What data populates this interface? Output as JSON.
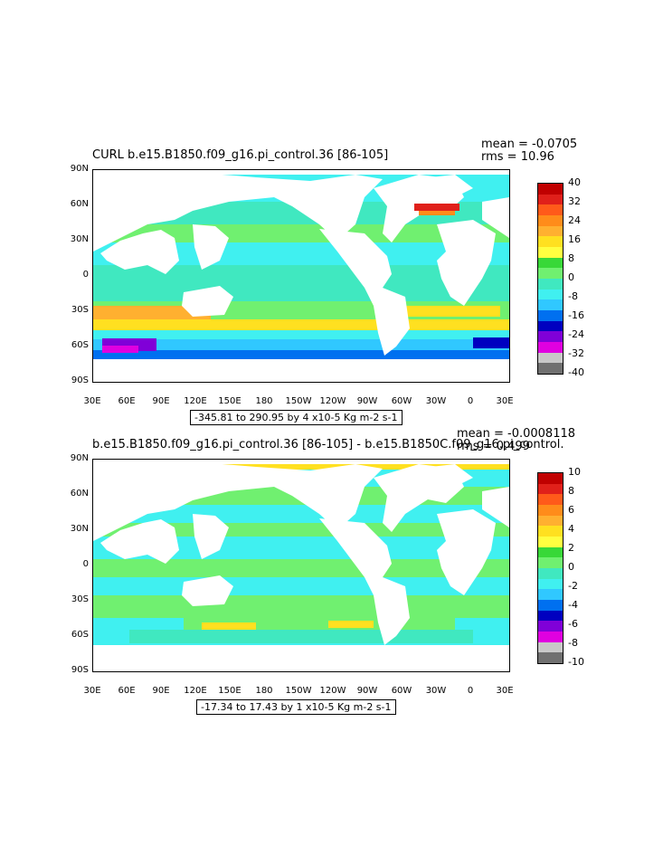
{
  "panel1": {
    "title": "CURL b.e15.B1850.f09_g16.pi_control.36 [86-105]",
    "mean": "mean = -0.0705",
    "rms": "rms = 10.96",
    "range_text": "-345.81 to 290.95 by 4 x10-5 Kg m-2 s-1",
    "legend_labels": [
      "40",
      "32",
      "24",
      "16",
      "8",
      "0",
      "-8",
      "-16",
      "-24",
      "-32",
      "-40"
    ],
    "legend_colors": [
      "#c00000",
      "#e0201a",
      "#ff5a1a",
      "#ff8c1a",
      "#ffb030",
      "#ffe020",
      "#ffff40",
      "#38d838",
      "#70f070",
      "#40e8c0",
      "#40f0f0",
      "#30c8ff",
      "#0070f0",
      "#0000c0",
      "#8000d8",
      "#e000e0",
      "#c8c8c8",
      "#707070"
    ]
  },
  "panel2": {
    "title": "b.e15.B1850.f09_g16.pi_control.36 [86-105] - b.e15.B1850C.f09_g16.pi_control.",
    "mean": "mean = -0.0008118",
    "rms": "rms = 0.499",
    "range_text": "-17.34 to 17.43 by 1 x10-5 Kg m-2 s-1",
    "legend_labels": [
      "10",
      "8",
      "6",
      "4",
      "2",
      "0",
      "-2",
      "-4",
      "-6",
      "-8",
      "-10"
    ],
    "legend_colors": [
      "#c00000",
      "#e0201a",
      "#ff5a1a",
      "#ff8c1a",
      "#ffb030",
      "#ffe020",
      "#ffff40",
      "#38d838",
      "#70f070",
      "#40e8c0",
      "#40f0f0",
      "#30c8ff",
      "#0070f0",
      "#0000c0",
      "#8000d8",
      "#e000e0",
      "#c8c8c8",
      "#707070"
    ]
  },
  "axes": {
    "lat_labels": [
      "90N",
      "60N",
      "30N",
      "0",
      "30S",
      "60S",
      "90S"
    ],
    "lon_labels": [
      "30E",
      "60E",
      "90E",
      "120E",
      "150E",
      "180",
      "150W",
      "120W",
      "90W",
      "60W",
      "30W",
      "0",
      "30E"
    ]
  }
}
